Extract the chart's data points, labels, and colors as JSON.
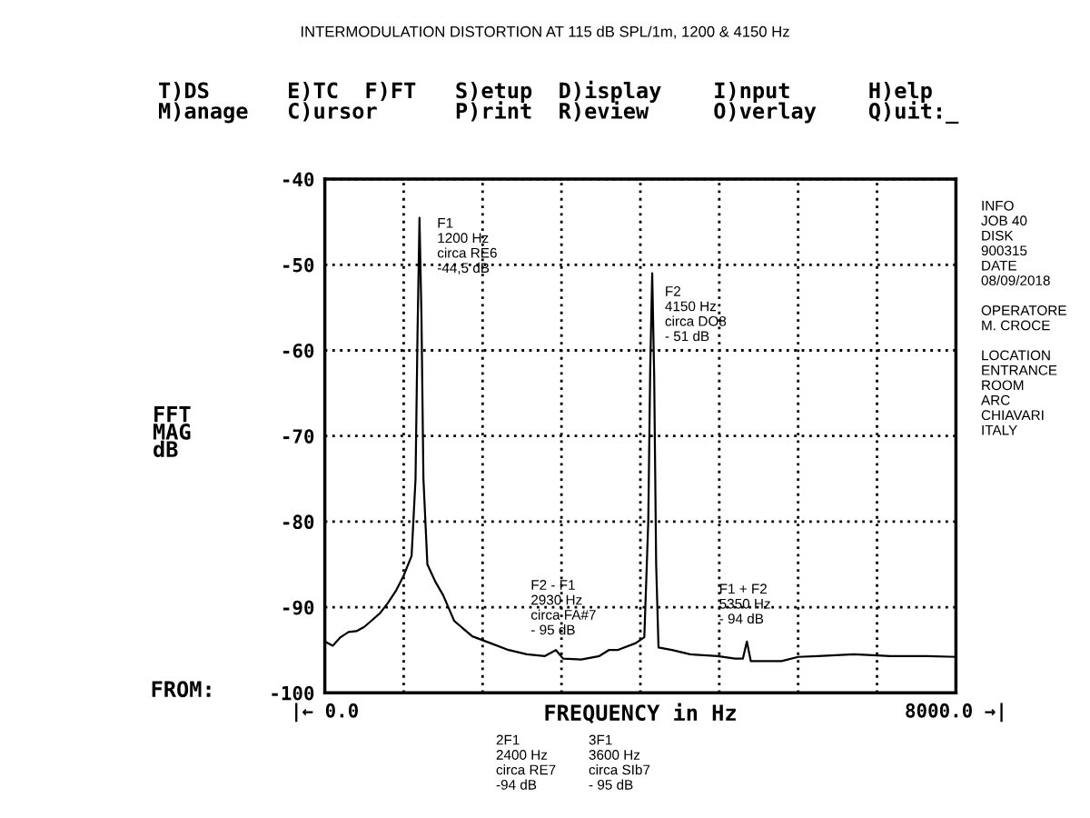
{
  "chart_data": {
    "type": "line",
    "title": "INTERMODULATION DISTORTION AT 115 dB SPL/1m, 1200 & 4150 Hz",
    "xlabel": "FREQUENCY in Hz",
    "ylabel": "FFT\nMAG\ndB",
    "xlim": [
      0,
      8000
    ],
    "xticks": [
      {
        "value": 0,
        "label": "|← 0.0"
      },
      {
        "value": 1000,
        "label": null
      },
      {
        "value": 2000,
        "label": null
      },
      {
        "value": 3000,
        "label": null
      },
      {
        "value": 4000,
        "label": null
      },
      {
        "value": 5000,
        "label": null
      },
      {
        "value": 6000,
        "label": null
      },
      {
        "value": 7000,
        "label": null
      },
      {
        "value": 8000,
        "label": "8000.0 →|"
      }
    ],
    "ylim": [
      -100,
      -40
    ],
    "yticks": [
      -100,
      -90,
      -80,
      -70,
      -60,
      -50,
      -40
    ],
    "grid": true,
    "line_style": "solid",
    "marker": "none",
    "series": [
      {
        "color": "#000000",
        "x": [
          0,
          100,
          200,
          300,
          400,
          500,
          600,
          700,
          800,
          900,
          1000,
          1100,
          1150,
          1175,
          1200,
          1225,
          1250,
          1300,
          1400,
          1500,
          1640,
          1870,
          2100,
          2330,
          2560,
          2790,
          2930,
          3020,
          3250,
          3480,
          3600,
          3710,
          3940,
          4050,
          4100,
          4125,
          4150,
          4175,
          4200,
          4230,
          4400,
          4630,
          4980,
          5200,
          5300,
          5350,
          5400,
          5790,
          6000,
          6250,
          6710,
          7170,
          7630,
          8000
        ],
        "values": [
          -94,
          -94.5,
          -93.5,
          -92.9,
          -92.8,
          -92.3,
          -91.5,
          -90.7,
          -89.5,
          -88.1,
          -86.3,
          -84,
          -75,
          -58,
          -44.5,
          -56,
          -75,
          -85,
          -87,
          -88.6,
          -91.6,
          -93.4,
          -94.2,
          -95,
          -95.5,
          -95.7,
          -95,
          -96,
          -96.1,
          -95.7,
          -95,
          -95,
          -94.2,
          -93.5,
          -80,
          -62,
          -51,
          -63,
          -85,
          -94.7,
          -95,
          -95.5,
          -95.7,
          -96,
          -96,
          -94,
          -96.3,
          -96.3,
          -95.8,
          -95.7,
          -95.5,
          -95.7,
          -95.7,
          -95.8
        ]
      }
    ],
    "annotations": [
      {
        "text": "F1\n1200 Hz\ncirca RE6\n-44,5 dB",
        "x": 1200,
        "y": -44.5
      },
      {
        "text": "F2\n4150 Hz\ncirca DO8\n- 51 dB",
        "x": 4150,
        "y": -51
      },
      {
        "text": "F2 - F1\n2930 Hz\ncirca FA#7\n- 95 dB",
        "x": 2930,
        "y": -95
      },
      {
        "text": "F1 + F2\n5350 Hz\n- 94 dB",
        "x": 5350,
        "y": -94
      },
      "2F1\n2400 Hz\ncirca RE7\n-94 dB",
      "3F1\n3600 Hz\ncirca SIb7\n- 95 dB",
      "T)DS      E)TC  F)FT   S)etup  D)isplay    I)nput      H)elp",
      "M)anage   C)ursor      P)rint  R)eview     O)verlay    Q)uit:_",
      "FROM:",
      "INFO\nJOB 40\nDISK\n900315\nDATE\n08/09/2018\n\nOPERATORE\nM. CROCE\n\nLOCATION\nENTRANCE\nROOM\nARC\nCHIAVARI\nITALY"
    ],
    "legend": false
  }
}
